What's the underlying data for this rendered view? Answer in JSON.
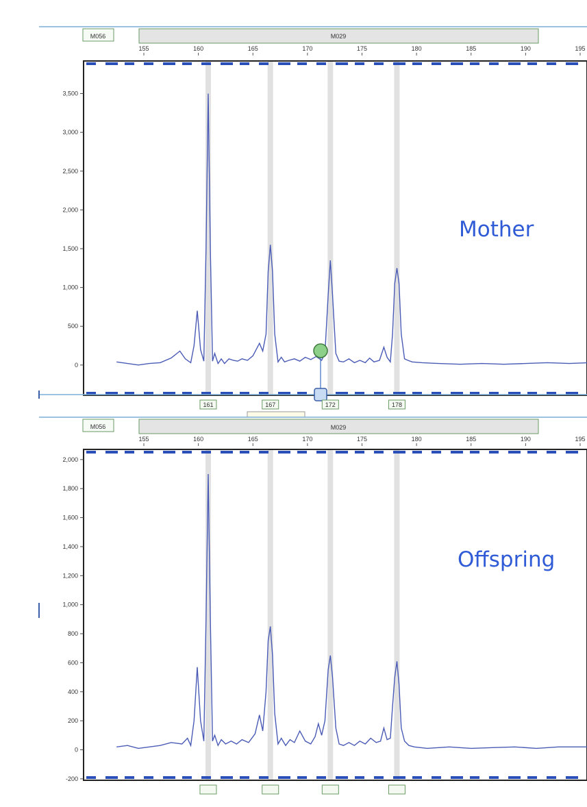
{
  "chart_data": [
    {
      "type": "line",
      "locus_labels": {
        "left": "M056",
        "main": "M029"
      },
      "annotation": "Mother",
      "x_ticks": [
        155,
        160,
        165,
        170,
        175,
        180,
        185,
        190,
        195
      ],
      "xlim": [
        152.2,
        195.8
      ],
      "y_ticks": [
        0,
        500,
        1000,
        1500,
        2000,
        2500,
        3000,
        3500
      ],
      "y_tick_labels": [
        "0",
        "500",
        "1,000",
        "1,500",
        "2,000",
        "2,500",
        "3,000",
        "3,500"
      ],
      "ylim": [
        -390,
        3920
      ],
      "grid": false,
      "bins": [
        160.9,
        166.6,
        172.1,
        178.2
      ],
      "allele_calls": [
        "161",
        "167",
        "172",
        "178"
      ],
      "series": [
        {
          "x": [
            152.5,
            153.5,
            154.5,
            155.5,
            156.5,
            157.5,
            158.3,
            158.8,
            159.3,
            159.6,
            159.9,
            160.2,
            160.5,
            160.7,
            160.9,
            161.1,
            161.3,
            161.5,
            161.8,
            162.1,
            162.4,
            162.8,
            163.2,
            163.6,
            164.0,
            164.5,
            165.0,
            165.6,
            165.9,
            166.2,
            166.4,
            166.6,
            166.8,
            167.0,
            167.3,
            167.6,
            167.9,
            168.3,
            168.8,
            169.3,
            169.8,
            170.3,
            170.8,
            171.3,
            171.6,
            171.9,
            172.1,
            172.3,
            172.6,
            172.9,
            173.3,
            173.8,
            174.3,
            174.8,
            175.3,
            175.7,
            176.1,
            176.6,
            177.0,
            177.3,
            177.6,
            177.8,
            178.0,
            178.2,
            178.4,
            178.6,
            178.9,
            179.2,
            179.6,
            180.5,
            182.0,
            184.0,
            186.0,
            188.0,
            190.0,
            192.0,
            194.0,
            195.8
          ],
          "y": [
            40,
            20,
            0,
            20,
            30,
            90,
            180,
            80,
            30,
            250,
            700,
            200,
            50,
            1500,
            3500,
            1500,
            50,
            150,
            20,
            80,
            20,
            80,
            60,
            50,
            80,
            60,
            120,
            280,
            180,
            400,
            1200,
            1550,
            1200,
            400,
            40,
            100,
            40,
            60,
            80,
            50,
            100,
            70,
            110,
            60,
            150,
            900,
            1350,
            900,
            150,
            50,
            40,
            80,
            30,
            60,
            30,
            90,
            40,
            60,
            230,
            100,
            40,
            400,
            1050,
            1250,
            1050,
            400,
            80,
            60,
            40,
            30,
            20,
            10,
            20,
            10,
            20,
            30,
            20,
            30
          ]
        }
      ]
    },
    {
      "type": "line",
      "locus_labels": {
        "left": "M056",
        "main": "M029"
      },
      "annotation": "Offspring",
      "x_ticks": [
        155,
        160,
        165,
        170,
        175,
        180,
        185,
        190,
        195
      ],
      "xlim": [
        152.2,
        195.8
      ],
      "y_ticks": [
        -200,
        0,
        200,
        400,
        600,
        800,
        1000,
        1200,
        1400,
        1600,
        1800,
        2000
      ],
      "y_tick_labels": [
        "-200",
        "0",
        "200",
        "400",
        "600",
        "800",
        "1,000",
        "1,200",
        "1,400",
        "1,600",
        "1,800",
        "2,000"
      ],
      "ylim": [
        -210,
        2070
      ],
      "grid": false,
      "bins": [
        160.9,
        166.6,
        172.1,
        178.2
      ],
      "series": [
        {
          "x": [
            152.5,
            153.5,
            154.5,
            155.5,
            156.5,
            157.5,
            158.5,
            159.0,
            159.3,
            159.6,
            159.9,
            160.2,
            160.5,
            160.7,
            160.9,
            161.1,
            161.3,
            161.5,
            161.8,
            162.1,
            162.5,
            163.0,
            163.5,
            164.0,
            164.6,
            165.2,
            165.6,
            165.9,
            166.2,
            166.4,
            166.6,
            166.8,
            167.0,
            167.3,
            167.6,
            168.0,
            168.4,
            168.8,
            169.3,
            169.8,
            170.3,
            170.7,
            171.0,
            171.3,
            171.6,
            171.9,
            172.1,
            172.3,
            172.6,
            172.9,
            173.3,
            173.8,
            174.3,
            174.8,
            175.3,
            175.8,
            176.3,
            176.7,
            177.0,
            177.3,
            177.6,
            177.8,
            178.0,
            178.2,
            178.4,
            178.6,
            178.9,
            179.3,
            179.8,
            181.0,
            183.0,
            185.0,
            187.0,
            189.0,
            191.0,
            193.0,
            195.8
          ],
          "y": [
            20,
            30,
            10,
            20,
            30,
            50,
            40,
            80,
            30,
            200,
            570,
            200,
            60,
            900,
            1900,
            900,
            60,
            100,
            30,
            70,
            40,
            60,
            40,
            70,
            50,
            110,
            240,
            130,
            400,
            750,
            850,
            650,
            250,
            40,
            80,
            30,
            70,
            50,
            130,
            60,
            40,
            90,
            180,
            100,
            200,
            550,
            650,
            500,
            150,
            40,
            30,
            50,
            30,
            60,
            40,
            80,
            50,
            60,
            150,
            70,
            80,
            300,
            500,
            610,
            450,
            150,
            60,
            30,
            20,
            10,
            20,
            10,
            15,
            20,
            10,
            20,
            20
          ]
        }
      ]
    }
  ]
}
